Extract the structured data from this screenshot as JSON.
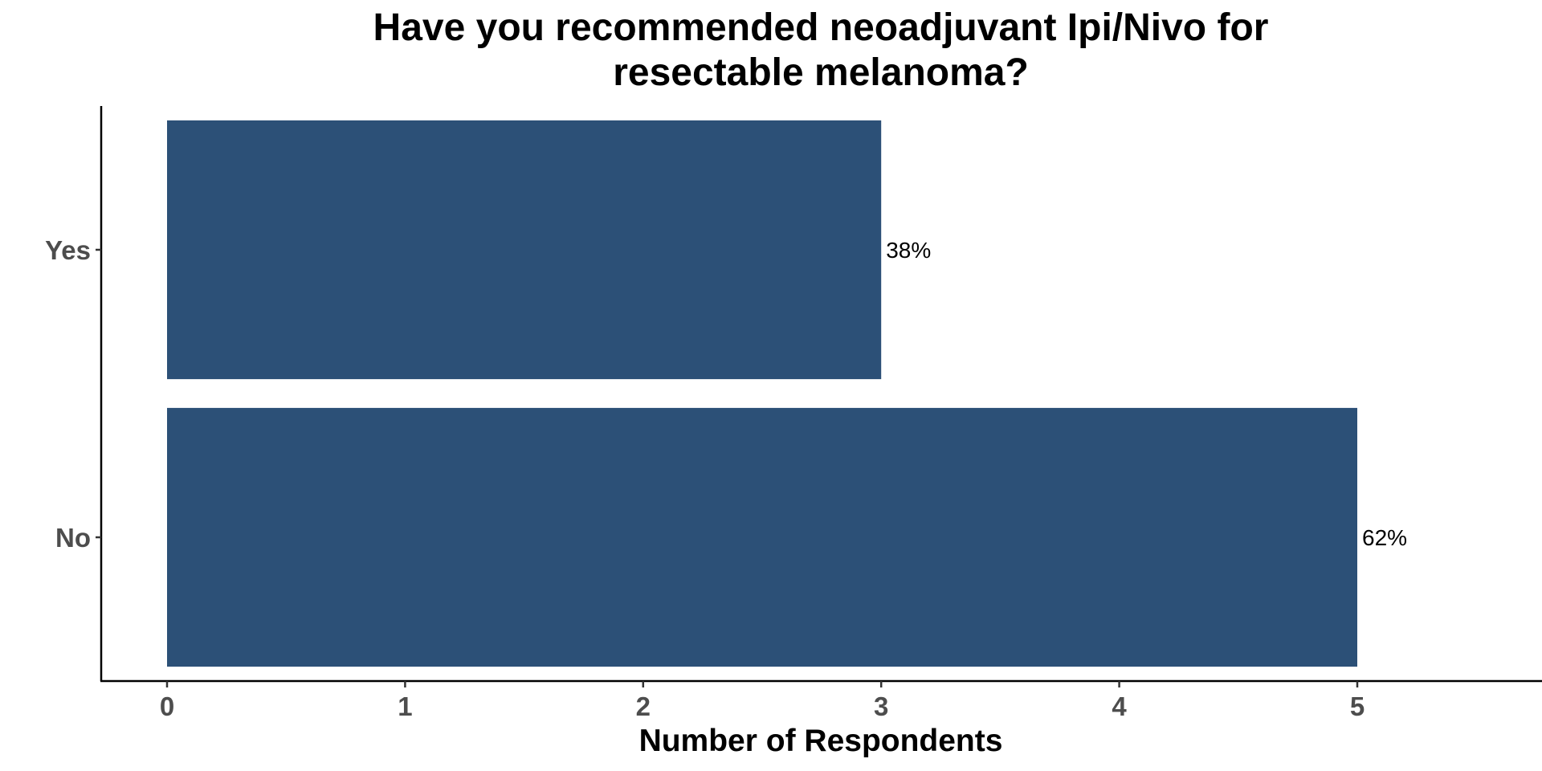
{
  "chart_data": {
    "type": "bar",
    "orientation": "horizontal",
    "title": "Have you recommended neoadjuvant Ipi/Nivo for resectable melanoma?",
    "title_lines": [
      "Have you recommended neoadjuvant Ipi/Nivo for",
      "resectable melanoma?"
    ],
    "xlabel": "Number of Respondents",
    "ylabel": "",
    "categories": [
      "Yes",
      "No"
    ],
    "values": [
      3,
      5
    ],
    "data_labels": [
      "38%",
      "62%"
    ],
    "xlim": [
      0,
      5.7
    ],
    "x_ticks": [
      0,
      1,
      2,
      3,
      4,
      5
    ],
    "x_tick_labels": [
      "0",
      "1",
      "2",
      "3",
      "4",
      "5"
    ],
    "bar_color": "#2c5077",
    "grid": false,
    "legend": "none"
  }
}
